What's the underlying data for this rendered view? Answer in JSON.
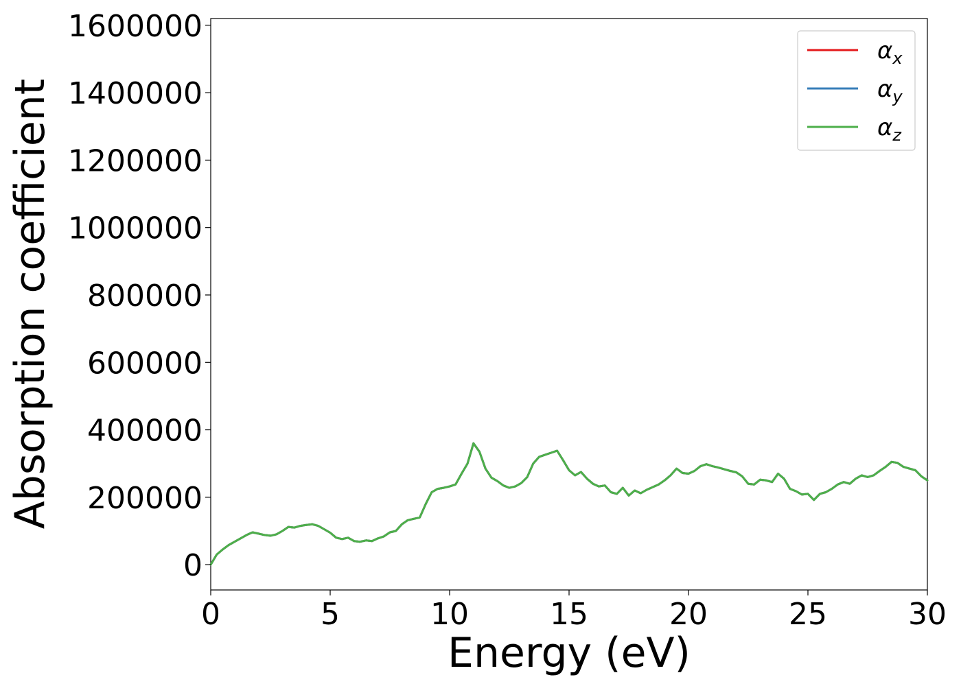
{
  "chart_data": {
    "type": "line",
    "title": "",
    "xlabel": "Energy (eV)",
    "ylabel": "Absorption coefficient",
    "xlim": [
      0,
      30
    ],
    "ylim": [
      -75000,
      1620000
    ],
    "xticks": [
      0,
      5,
      10,
      15,
      20,
      25,
      30
    ],
    "yticks": [
      0,
      200000,
      400000,
      600000,
      800000,
      1000000,
      1200000,
      1400000,
      1600000
    ],
    "xtick_labels": [
      "0",
      "5",
      "10",
      "15",
      "20",
      "25",
      "30"
    ],
    "ytick_labels": [
      "0",
      "200000",
      "400000",
      "600000",
      "800000",
      "1000000",
      "1200000",
      "1400000",
      "1600000"
    ],
    "grid": false,
    "legend_position": "top-right",
    "x": [
      0,
      0.25,
      0.5,
      0.75,
      1,
      1.25,
      1.5,
      1.75,
      2,
      2.25,
      2.5,
      2.75,
      3,
      3.25,
      3.5,
      3.75,
      4,
      4.25,
      4.5,
      4.75,
      5,
      5.25,
      5.5,
      5.75,
      6,
      6.25,
      6.5,
      6.75,
      7,
      7.25,
      7.5,
      7.75,
      8,
      8.25,
      8.5,
      8.75,
      9,
      9.25,
      9.5,
      9.75,
      10,
      10.25,
      10.5,
      10.75,
      11,
      11.25,
      11.5,
      11.75,
      12,
      12.25,
      12.5,
      12.75,
      13,
      13.25,
      13.5,
      13.75,
      14,
      14.25,
      14.5,
      14.75,
      15,
      15.25,
      15.5,
      15.75,
      16,
      16.25,
      16.5,
      16.75,
      17,
      17.25,
      17.5,
      17.75,
      18,
      18.25,
      18.5,
      18.75,
      19,
      19.25,
      19.5,
      19.75,
      20,
      20.25,
      20.5,
      20.75,
      21,
      21.25,
      21.5,
      21.75,
      22,
      22.25,
      22.5,
      22.75,
      23,
      23.25,
      23.5,
      23.75,
      24,
      24.25,
      24.5,
      24.75,
      25,
      25.25,
      25.5,
      25.75,
      26,
      26.25,
      26.5,
      26.75,
      27,
      27.25,
      27.5,
      27.75,
      28,
      28.25,
      28.5,
      28.75,
      29,
      29.25,
      29.5,
      29.75,
      30
    ],
    "series": [
      {
        "name": "α_x",
        "color": "#e41a1c",
        "values": [
          0,
          30000,
          45000,
          58000,
          68000,
          78000,
          88000,
          96000,
          92000,
          88000,
          86000,
          90000,
          100000,
          112000,
          110000,
          115000,
          118000,
          120000,
          115000,
          105000,
          95000,
          80000,
          76000,
          80000,
          70000,
          68000,
          72000,
          70000,
          78000,
          84000,
          96000,
          100000,
          120000,
          132000,
          136000,
          140000,
          180000,
          215000,
          225000,
          228000,
          232000,
          238000,
          270000,
          300000,
          360000,
          335000,
          285000,
          258000,
          248000,
          235000,
          228000,
          232000,
          242000,
          260000,
          300000,
          320000,
          326000,
          332000,
          338000,
          310000,
          280000,
          265000,
          275000,
          255000,
          240000,
          232000,
          235000,
          215000,
          210000,
          228000,
          205000,
          220000,
          212000,
          222000,
          230000,
          238000,
          250000,
          265000,
          285000,
          272000,
          270000,
          278000,
          292000,
          298000,
          292000,
          288000,
          283000,
          278000,
          274000,
          262000,
          240000,
          238000,
          252000,
          250000,
          245000,
          270000,
          255000,
          225000,
          218000,
          208000,
          210000,
          192000,
          210000,
          215000,
          225000,
          238000,
          245000,
          240000,
          255000,
          265000,
          260000,
          265000,
          278000,
          290000,
          305000,
          302000,
          290000,
          285000,
          280000,
          262000,
          250000
        ]
      },
      {
        "name": "α_y",
        "color": "#377eb8",
        "values": [
          0,
          30000,
          45000,
          58000,
          68000,
          78000,
          88000,
          96000,
          92000,
          88000,
          86000,
          90000,
          100000,
          112000,
          110000,
          115000,
          118000,
          120000,
          115000,
          105000,
          95000,
          80000,
          76000,
          80000,
          70000,
          68000,
          72000,
          70000,
          78000,
          84000,
          96000,
          100000,
          120000,
          132000,
          136000,
          140000,
          180000,
          215000,
          225000,
          228000,
          232000,
          238000,
          270000,
          300000,
          360000,
          335000,
          285000,
          258000,
          248000,
          235000,
          228000,
          232000,
          242000,
          260000,
          300000,
          320000,
          326000,
          332000,
          338000,
          310000,
          280000,
          265000,
          275000,
          255000,
          240000,
          232000,
          235000,
          215000,
          210000,
          228000,
          205000,
          220000,
          212000,
          222000,
          230000,
          238000,
          250000,
          265000,
          285000,
          272000,
          270000,
          278000,
          292000,
          298000,
          292000,
          288000,
          283000,
          278000,
          274000,
          262000,
          240000,
          238000,
          252000,
          250000,
          245000,
          270000,
          255000,
          225000,
          218000,
          208000,
          210000,
          192000,
          210000,
          215000,
          225000,
          238000,
          245000,
          240000,
          255000,
          265000,
          260000,
          265000,
          278000,
          290000,
          305000,
          302000,
          290000,
          285000,
          280000,
          262000,
          250000
        ]
      },
      {
        "name": "α_z",
        "color": "#4daf4a",
        "values": [
          0,
          30000,
          45000,
          58000,
          68000,
          78000,
          88000,
          96000,
          92000,
          88000,
          86000,
          90000,
          100000,
          112000,
          110000,
          115000,
          118000,
          120000,
          115000,
          105000,
          95000,
          80000,
          76000,
          80000,
          70000,
          68000,
          72000,
          70000,
          78000,
          84000,
          96000,
          100000,
          120000,
          132000,
          136000,
          140000,
          180000,
          215000,
          225000,
          228000,
          232000,
          238000,
          270000,
          300000,
          360000,
          335000,
          285000,
          258000,
          248000,
          235000,
          228000,
          232000,
          242000,
          260000,
          300000,
          320000,
          326000,
          332000,
          338000,
          310000,
          280000,
          265000,
          275000,
          255000,
          240000,
          232000,
          235000,
          215000,
          210000,
          228000,
          205000,
          220000,
          212000,
          222000,
          230000,
          238000,
          250000,
          265000,
          285000,
          272000,
          270000,
          278000,
          292000,
          298000,
          292000,
          288000,
          283000,
          278000,
          274000,
          262000,
          240000,
          238000,
          252000,
          250000,
          245000,
          270000,
          255000,
          225000,
          218000,
          208000,
          210000,
          192000,
          210000,
          215000,
          225000,
          238000,
          245000,
          240000,
          255000,
          265000,
          260000,
          265000,
          278000,
          290000,
          305000,
          302000,
          290000,
          285000,
          280000,
          262000,
          250000
        ]
      }
    ],
    "legend": [
      {
        "symbol": "α",
        "subscript": "x",
        "color": "#e41a1c"
      },
      {
        "symbol": "α",
        "subscript": "y",
        "color": "#377eb8"
      },
      {
        "symbol": "α",
        "subscript": "z",
        "color": "#4daf4a"
      }
    ]
  }
}
